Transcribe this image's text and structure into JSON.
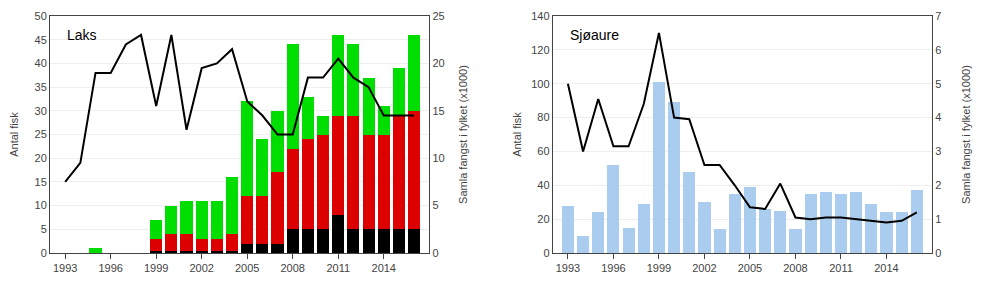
{
  "chart_data": [
    {
      "type": "bar",
      "title": "Laks",
      "stacked": true,
      "grid": true,
      "ylabel": "Antal fisk",
      "y2label": "Samla fangst i fylket (x1000)",
      "xlim": [
        1992,
        2017
      ],
      "xticks": [
        1993,
        1996,
        1999,
        2002,
        2005,
        2008,
        2011,
        2014
      ],
      "ylim": [
        0,
        50
      ],
      "yticks": [
        0,
        5,
        10,
        15,
        20,
        25,
        30,
        35,
        40,
        45,
        50
      ],
      "y2lim": [
        0,
        25
      ],
      "y2ticks": [
        0,
        5,
        10,
        15,
        20,
        25
      ],
      "series": [
        {
          "type": "bar",
          "color": "#000000",
          "x": [
            1995,
            1998,
            1999,
            2000,
            2001,
            2002,
            2003,
            2004,
            2005,
            2006,
            2007,
            2008,
            2009,
            2010,
            2011,
            2012,
            2013,
            2014,
            2015,
            2016
          ],
          "values": [
            0,
            0,
            0.5,
            0.5,
            0.5,
            0.5,
            0.5,
            0.5,
            2,
            2,
            2,
            5,
            5,
            5,
            8,
            5,
            5,
            5,
            5,
            5
          ]
        },
        {
          "type": "bar",
          "color": "#dd0000",
          "x": [
            1995,
            1998,
            1999,
            2000,
            2001,
            2002,
            2003,
            2004,
            2005,
            2006,
            2007,
            2008,
            2009,
            2010,
            2011,
            2012,
            2013,
            2014,
            2015,
            2016
          ],
          "values": [
            0,
            0,
            2.5,
            3.5,
            3.5,
            2.5,
            2.5,
            3.5,
            10,
            10,
            15,
            17,
            19,
            20,
            21,
            24,
            20,
            20,
            24,
            25
          ]
        },
        {
          "type": "bar",
          "color": "#00dd00",
          "x": [
            1995,
            1998,
            1999,
            2000,
            2001,
            2002,
            2003,
            2004,
            2005,
            2006,
            2007,
            2008,
            2009,
            2010,
            2011,
            2012,
            2013,
            2014,
            2015,
            2016
          ],
          "values": [
            1,
            0,
            4,
            6,
            7,
            8,
            8,
            12,
            20,
            12,
            13,
            22,
            9,
            4,
            17,
            15,
            12,
            6,
            10,
            16
          ]
        },
        {
          "type": "line",
          "axis": "y2",
          "color": "#000000",
          "x": [
            1993,
            1994,
            1995,
            1996,
            1997,
            1998,
            1999,
            2000,
            2001,
            2002,
            2003,
            2004,
            2005,
            2006,
            2007,
            2008,
            2009,
            2010,
            2011,
            2012,
            2013,
            2014,
            2015,
            2016
          ],
          "values": [
            7.5,
            9.5,
            19,
            19,
            22,
            23,
            15.5,
            23,
            13,
            19.5,
            20,
            21.5,
            16,
            14.5,
            12.5,
            12.5,
            18.5,
            18.5,
            20.5,
            18.5,
            17.5,
            14.5,
            14.5,
            14.5
          ]
        }
      ]
    },
    {
      "type": "bar",
      "title": "Sjøaure",
      "stacked": false,
      "grid": true,
      "ylabel": "Antal fisk",
      "y2label": "Samla fangst i fylket (x1000)",
      "xlim": [
        1992,
        2017
      ],
      "xticks": [
        1993,
        1996,
        1999,
        2002,
        2005,
        2008,
        2011,
        2014
      ],
      "ylim": [
        0,
        140
      ],
      "yticks": [
        0,
        20,
        40,
        60,
        80,
        100,
        120,
        140
      ],
      "y2lim": [
        0,
        7
      ],
      "y2ticks": [
        0,
        1,
        2,
        3,
        4,
        5,
        6,
        7
      ],
      "series": [
        {
          "type": "bar",
          "color": "#aaccee",
          "x": [
            1993,
            1994,
            1995,
            1996,
            1997,
            1998,
            1999,
            2000,
            2001,
            2002,
            2003,
            2004,
            2005,
            2006,
            2007,
            2008,
            2009,
            2010,
            2011,
            2012,
            2013,
            2014,
            2015,
            2016
          ],
          "values": [
            28,
            10,
            24,
            52,
            15,
            29,
            101,
            89,
            48,
            30,
            14,
            35,
            39,
            26,
            25,
            14,
            35,
            36,
            35,
            36,
            29,
            24,
            24,
            37
          ]
        },
        {
          "type": "line",
          "axis": "y2",
          "color": "#000000",
          "x": [
            1993,
            1994,
            1995,
            1996,
            1997,
            1998,
            1999,
            2000,
            2001,
            2002,
            2003,
            2004,
            2005,
            2006,
            2007,
            2008,
            2009,
            2010,
            2011,
            2012,
            2013,
            2014,
            2015,
            2016
          ],
          "values": [
            5.0,
            3.0,
            4.55,
            3.15,
            3.15,
            4.4,
            6.5,
            4.0,
            3.95,
            2.6,
            2.6,
            2.0,
            1.35,
            1.3,
            2.05,
            1.05,
            1.0,
            1.05,
            1.05,
            1.0,
            0.95,
            0.9,
            0.95,
            1.2
          ]
        }
      ]
    }
  ]
}
